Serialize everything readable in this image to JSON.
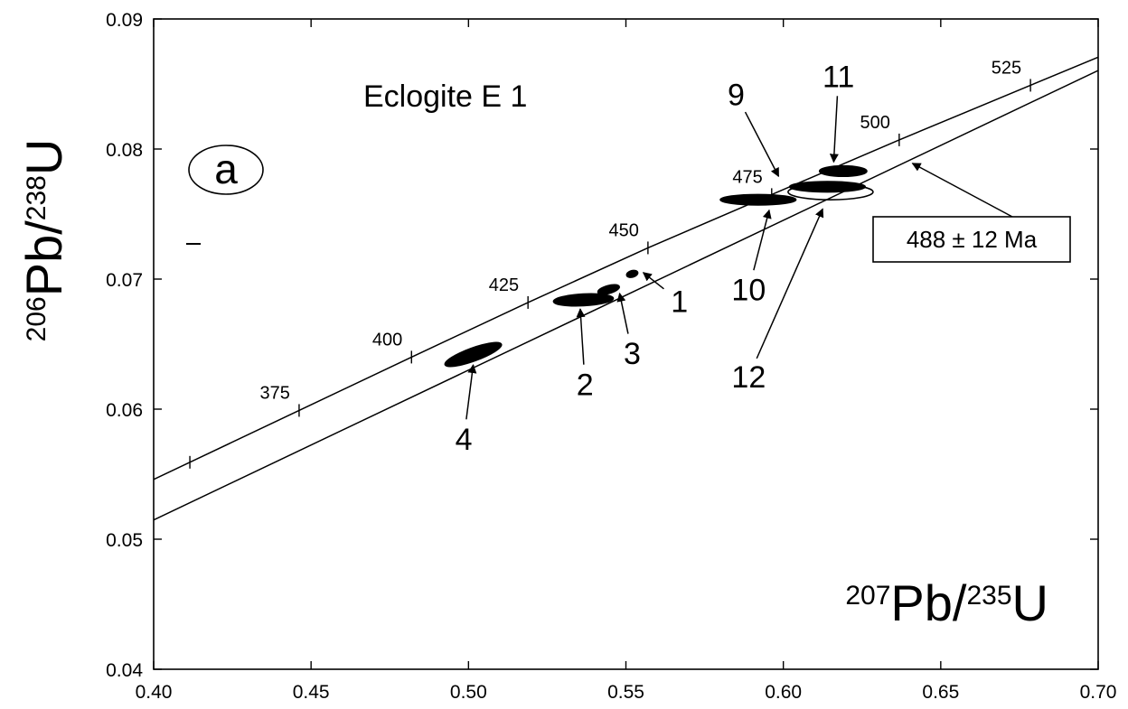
{
  "chart_data": {
    "type": "scatter",
    "title": "Eclogite E 1",
    "panel_label": "a",
    "xlabel": {
      "pre": "207",
      "pb": "Pb/",
      "sup": "235",
      "u": "U"
    },
    "ylabel": {
      "pre": "206",
      "pb": "Pb/",
      "sup": "238",
      "u": "U"
    },
    "xlim": [
      0.4,
      0.7
    ],
    "ylim": [
      0.04,
      0.09
    ],
    "x_ticks": [
      {
        "v": 0.4,
        "label": "0.40"
      },
      {
        "v": 0.45,
        "label": "0.45"
      },
      {
        "v": 0.5,
        "label": "0.50"
      },
      {
        "v": 0.55,
        "label": "0.55"
      },
      {
        "v": 0.6,
        "label": "0.60"
      },
      {
        "v": 0.65,
        "label": "0.65"
      },
      {
        "v": 0.7,
        "label": "0.70"
      }
    ],
    "y_ticks": [
      {
        "v": 0.04,
        "label": "0.04"
      },
      {
        "v": 0.05,
        "label": "0.05"
      },
      {
        "v": 0.06,
        "label": "0.06"
      },
      {
        "v": 0.07,
        "label": "0.07"
      },
      {
        "v": 0.08,
        "label": "0.08"
      },
      {
        "v": 0.09,
        "label": "0.09"
      }
    ],
    "concordia_ticks": [
      {
        "age": "375",
        "x": 0.4462,
        "y": 0.0599
      },
      {
        "age": "400",
        "x": 0.4819,
        "y": 0.064
      },
      {
        "age": "425",
        "x": 0.5189,
        "y": 0.0682
      },
      {
        "age": "450",
        "x": 0.557,
        "y": 0.0724
      },
      {
        "age": "475",
        "x": 0.5963,
        "y": 0.0765
      },
      {
        "age": "500",
        "x": 0.6368,
        "y": 0.0807
      },
      {
        "age": "525",
        "x": 0.6785,
        "y": 0.0849
      }
    ],
    "discordia": {
      "intercept": 0.0054,
      "slope": 0.1152
    },
    "ellipses": [
      {
        "id": "4",
        "x": 0.5015,
        "y": 0.0642,
        "rx": 0.0095,
        "ry": 0.0005,
        "angle_deg": -20,
        "fill": "black"
      },
      {
        "id": "2",
        "x": 0.5365,
        "y": 0.0684,
        "rx": 0.0095,
        "ry": 0.00045,
        "angle_deg": -3,
        "fill": "black"
      },
      {
        "id": "3",
        "x": 0.5445,
        "y": 0.0692,
        "rx": 0.0035,
        "ry": 0.0003,
        "angle_deg": -15,
        "fill": "black"
      },
      {
        "id": "1",
        "x": 0.552,
        "y": 0.0704,
        "rx": 0.0018,
        "ry": 0.00025,
        "angle_deg": -15,
        "fill": "black"
      },
      {
        "id": "10",
        "x": 0.592,
        "y": 0.0761,
        "rx": 0.012,
        "ry": 0.0004,
        "angle_deg": 0,
        "fill": "black"
      },
      {
        "id": "9",
        "x": 0.614,
        "y": 0.0771,
        "rx": 0.012,
        "ry": 0.0004,
        "angle_deg": 0,
        "fill": "black"
      },
      {
        "id": "12",
        "x": 0.615,
        "y": 0.0767,
        "rx": 0.0135,
        "ry": 0.0006,
        "angle_deg": 0,
        "fill": "none"
      },
      {
        "id": "11",
        "x": 0.619,
        "y": 0.0783,
        "rx": 0.0075,
        "ry": 0.0004,
        "angle_deg": 0,
        "fill": "black"
      }
    ],
    "point_labels": [
      {
        "text": "1",
        "x": 0.567,
        "y": 0.0683,
        "tip_x": 0.5555,
        "tip_y": 0.0705
      },
      {
        "text": "2",
        "x": 0.537,
        "y": 0.0619,
        "tip_x": 0.5355,
        "tip_y": 0.0677
      },
      {
        "text": "3",
        "x": 0.552,
        "y": 0.0643,
        "tip_x": 0.548,
        "tip_y": 0.0689
      },
      {
        "text": "4",
        "x": 0.4985,
        "y": 0.0577,
        "tip_x": 0.5015,
        "tip_y": 0.0634
      },
      {
        "text": "9",
        "x": 0.585,
        "y": 0.0842,
        "tip_x": 0.5985,
        "tip_y": 0.0779
      },
      {
        "text": "10",
        "x": 0.589,
        "y": 0.0692,
        "tip_x": 0.5955,
        "tip_y": 0.0753
      },
      {
        "text": "11",
        "x": 0.6175,
        "y": 0.0856,
        "tip_x": 0.616,
        "tip_y": 0.079
      },
      {
        "text": "12",
        "x": 0.589,
        "y": 0.0625,
        "tip_x": 0.6125,
        "tip_y": 0.0754
      }
    ],
    "result_label": "488 ± 12 Ma",
    "result_arrow_tip": {
      "x": 0.641,
      "y": 0.0789
    }
  }
}
